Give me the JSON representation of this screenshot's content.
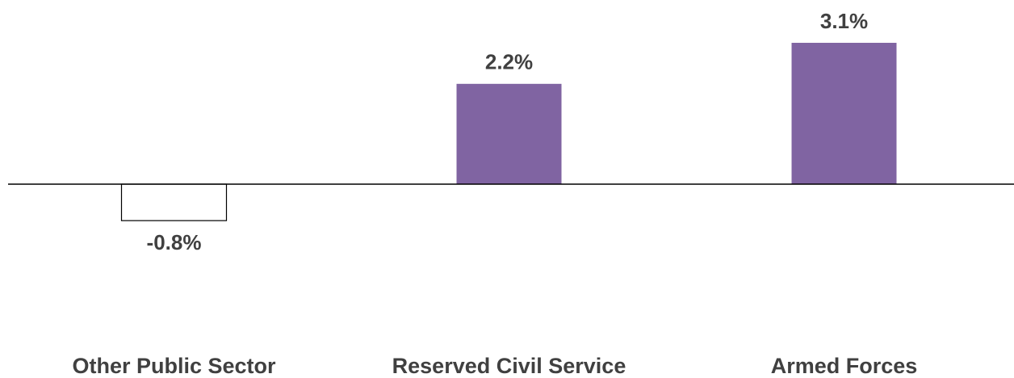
{
  "chart_data": {
    "type": "bar",
    "categories": [
      "Other Public Sector",
      "Reserved Civil Service",
      "Armed Forces"
    ],
    "values": [
      -0.8,
      2.2,
      3.1
    ],
    "value_labels": [
      "-0.8%",
      "2.2%",
      "3.1%"
    ],
    "colors": [
      "#ffffff",
      "#8064a2",
      "#8064a2"
    ]
  }
}
